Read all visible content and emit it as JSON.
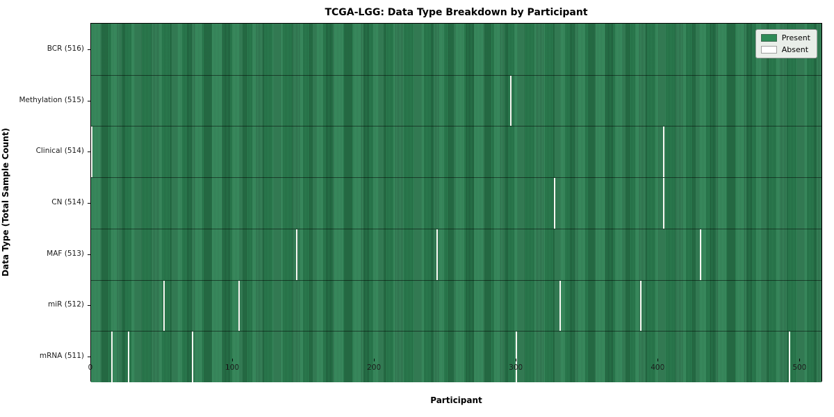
{
  "title": "TCGA-LGG: Data Type Breakdown by Participant",
  "axes": {
    "xlabel": "Participant",
    "ylabel": "Data Type (Total Sample Count)"
  },
  "legend": {
    "present_label": "Present",
    "absent_label": "Absent",
    "position": "upper right"
  },
  "colors": {
    "present": "#2e8b57",
    "present_edge": "#1d5737",
    "absent": "#f7f7f2",
    "legend_bg": "#e9eee9"
  },
  "chart_data": {
    "type": "heatmap",
    "title": "TCGA-LGG: Data Type Breakdown by Participant",
    "xlabel": "Participant",
    "ylabel": "Data Type (Total Sample Count)",
    "x_ticks": [
      0,
      100,
      200,
      300,
      400,
      500
    ],
    "x_range": [
      0,
      516
    ],
    "n_participants": 516,
    "grid": false,
    "legend_entries": [
      "Present",
      "Absent"
    ],
    "legend_position": "upper right",
    "rows": [
      {
        "label": "BCR (516)",
        "total": 516,
        "absent_participants": []
      },
      {
        "label": "Methylation (515)",
        "total": 515,
        "absent_participants": [
          296
        ]
      },
      {
        "label": "Clinical (514)",
        "total": 514,
        "absent_participants": [
          0,
          404
        ]
      },
      {
        "label": "CN (514)",
        "total": 514,
        "absent_participants": [
          327,
          404
        ]
      },
      {
        "label": "MAF (513)",
        "total": 513,
        "absent_participants": [
          145,
          244,
          430
        ]
      },
      {
        "label": "miR (512)",
        "total": 512,
        "absent_participants": [
          51,
          104,
          331,
          388
        ]
      },
      {
        "label": "mRNA (511)",
        "total": 511,
        "absent_participants": [
          14,
          26,
          71,
          300,
          493
        ]
      }
    ]
  }
}
